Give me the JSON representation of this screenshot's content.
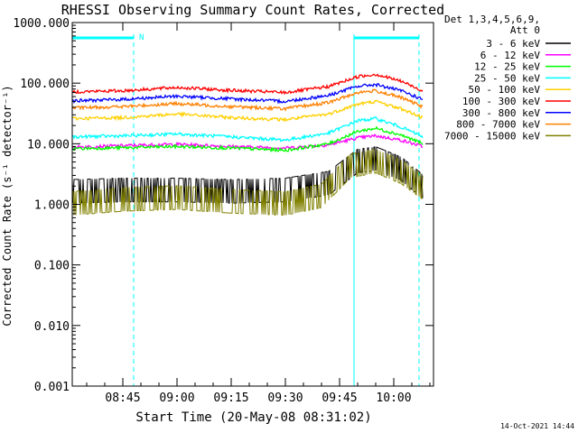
{
  "chart_data": {
    "type": "line",
    "title": "RHESSI Observing Summary Count Rates, Corrected",
    "xlabel": "Start Time (20-May-08 08:31:02)",
    "ylabel": "Corrected Count Rate (s⁻¹ detector⁻¹)",
    "footer": "14-Oct-2021 14:44",
    "y_scale": "log",
    "ylim": [
      0.001,
      1000
    ],
    "y_ticks": [
      "1000.000",
      "100.000",
      "10.000",
      "1.000",
      "0.100",
      "0.010",
      "0.001"
    ],
    "xlim": [
      "08:31",
      "10:11"
    ],
    "x_ticks": [
      "08:45",
      "09:00",
      "09:15",
      "09:30",
      "09:45",
      "10:00"
    ],
    "legend_header": [
      "Det 1,3,4,5,6,9,",
      "Att 0"
    ],
    "legend_position": "right",
    "night_marker": "N",
    "series": [
      {
        "name": "3 - 6 keV",
        "color": "#000000",
        "points": [
          [
            "08:31",
            1.9
          ],
          [
            "08:45",
            2.0
          ],
          [
            "09:00",
            2.0
          ],
          [
            "09:15",
            1.9
          ],
          [
            "09:30",
            2.0
          ],
          [
            "09:42",
            2.6
          ],
          [
            "09:50",
            6.0
          ],
          [
            "09:55",
            6.6
          ],
          [
            "10:02",
            4.5
          ],
          [
            "10:08",
            2.3
          ]
        ]
      },
      {
        "name": "6 - 12 keV",
        "color": "#ff00ff",
        "points": [
          [
            "08:31",
            8.8
          ],
          [
            "08:45",
            9.3
          ],
          [
            "09:00",
            9.8
          ],
          [
            "09:15",
            9.0
          ],
          [
            "09:30",
            8.5
          ],
          [
            "09:42",
            9.6
          ],
          [
            "09:50",
            12.5
          ],
          [
            "09:55",
            13.5
          ],
          [
            "10:02",
            11.5
          ],
          [
            "10:08",
            9.0
          ]
        ]
      },
      {
        "name": "12 - 25 keV",
        "color": "#00ff00",
        "points": [
          [
            "08:31",
            8.3
          ],
          [
            "08:45",
            8.6
          ],
          [
            "09:00",
            9.0
          ],
          [
            "09:15",
            8.5
          ],
          [
            "09:30",
            7.8
          ],
          [
            "09:42",
            10.0
          ],
          [
            "09:50",
            16.0
          ],
          [
            "09:55",
            18.0
          ],
          [
            "10:02",
            14.0
          ],
          [
            "10:08",
            10.0
          ]
        ]
      },
      {
        "name": "25 - 50 keV",
        "color": "#00ffff",
        "points": [
          [
            "08:31",
            13.0
          ],
          [
            "08:45",
            13.5
          ],
          [
            "09:00",
            14.5
          ],
          [
            "09:15",
            13.0
          ],
          [
            "09:30",
            11.5
          ],
          [
            "09:42",
            15.0
          ],
          [
            "09:50",
            24.0
          ],
          [
            "09:55",
            26.0
          ],
          [
            "10:02",
            19.0
          ],
          [
            "10:08",
            13.0
          ]
        ]
      },
      {
        "name": "50 - 100 keV",
        "color": "#ffd000",
        "points": [
          [
            "08:31",
            26
          ],
          [
            "08:45",
            27
          ],
          [
            "09:00",
            31
          ],
          [
            "09:15",
            27
          ],
          [
            "09:30",
            25
          ],
          [
            "09:42",
            31
          ],
          [
            "09:50",
            45
          ],
          [
            "09:55",
            50
          ],
          [
            "10:02",
            38
          ],
          [
            "10:08",
            27
          ]
        ]
      },
      {
        "name": "100 - 300 keV",
        "color": "#ff0000",
        "points": [
          [
            "08:31",
            72
          ],
          [
            "08:45",
            75
          ],
          [
            "09:00",
            85
          ],
          [
            "09:15",
            76
          ],
          [
            "09:30",
            70
          ],
          [
            "09:42",
            88
          ],
          [
            "09:50",
            128
          ],
          [
            "09:55",
            140
          ],
          [
            "10:02",
            108
          ],
          [
            "10:08",
            75
          ]
        ]
      },
      {
        "name": "300 - 800 keV",
        "color": "#0000ff",
        "points": [
          [
            "08:31",
            51
          ],
          [
            "08:45",
            54
          ],
          [
            "09:00",
            61
          ],
          [
            "09:15",
            55
          ],
          [
            "09:30",
            50
          ],
          [
            "09:42",
            63
          ],
          [
            "09:50",
            89
          ],
          [
            "09:55",
            95
          ],
          [
            "10:02",
            75
          ],
          [
            "10:08",
            54
          ]
        ]
      },
      {
        "name": "800 - 7000 keV",
        "color": "#ff8000",
        "points": [
          [
            "08:31",
            39
          ],
          [
            "08:45",
            41
          ],
          [
            "09:00",
            46
          ],
          [
            "09:15",
            41
          ],
          [
            "09:30",
            38
          ],
          [
            "09:42",
            48
          ],
          [
            "09:50",
            70
          ],
          [
            "09:55",
            75
          ],
          [
            "10:02",
            58
          ],
          [
            "10:08",
            41
          ]
        ]
      },
      {
        "name": "7000 - 15000 keV",
        "color": "#808000",
        "points": [
          [
            "08:31",
            1.2
          ],
          [
            "08:45",
            1.4
          ],
          [
            "09:00",
            1.5
          ],
          [
            "09:15",
            1.3
          ],
          [
            "09:30",
            1.2
          ],
          [
            "09:40",
            1.6
          ],
          [
            "09:48",
            5.0
          ],
          [
            "09:55",
            6.0
          ],
          [
            "10:02",
            4.0
          ],
          [
            "10:08",
            2.2
          ]
        ]
      }
    ],
    "annotations": {
      "saa_bars": [
        [
          "08:31",
          "08:48"
        ],
        [
          "09:49",
          "10:07"
        ]
      ],
      "dashed_lines": [
        "08:48",
        "10:07"
      ],
      "solid_lines": [
        "09:49"
      ]
    }
  }
}
